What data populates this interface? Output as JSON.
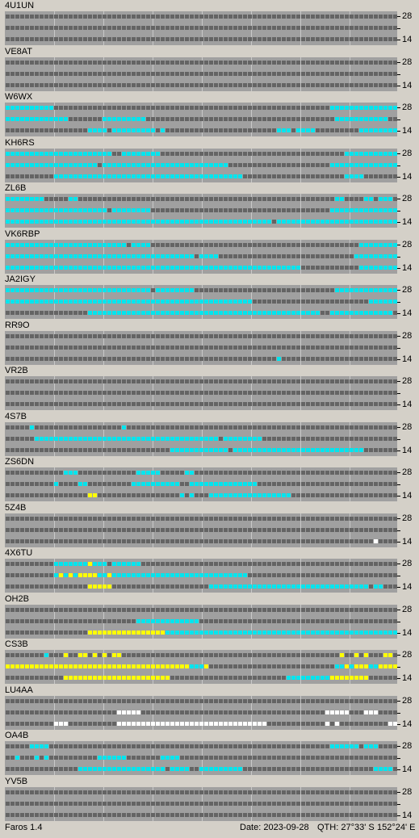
{
  "scale": {
    "top_label": "28",
    "bottom_label": "14"
  },
  "footer": {
    "app": "Faros 1.4",
    "date": "Date: 2023-09-28",
    "qth": "QTH: 27°33' S",
    "lon": "152°24' E"
  },
  "palette": {
    "off": "#646464",
    "heard": "#00e5ee",
    "strong": "#ffff00",
    "very_strong": "#ffffff",
    "background": "#a0a0a0"
  },
  "beacons": [
    {
      "name": "4U1UN",
      "pattern": [
        "000000000000000000000000000000000000000000000000000000000000000000000000000000000",
        "000000000000000000000000000000000000000000000000000000000000000000000000000000000",
        "000000000000000000000000000000000000000000000000000000000000000000000000000000000"
      ]
    },
    {
      "name": "VE8AT",
      "pattern": [
        "000000000000000000000000000000000000000000000000000000000000000000000000000000000",
        "000000000000000000000000000000000000000000000000000000000000000000000000000000000",
        "000000000000000000000000000000000000000000000000000000000000000000000000000000000"
      ]
    },
    {
      "name": "W6WX",
      "pattern": [
        "111111111100000000000000000000000000000000000000000000000000000000011111111111111",
        "111111111111100000001111111110000000000000000000000000000000000000001111111111100",
        "000000000000000001111011111111101000000000000000000000001110111100000000011111111"
      ]
    },
    {
      "name": "KH6RS",
      "pattern": [
        "111111111111111111111100111111110000000000000000000000000000000000000011111111111",
        "111111111111111111101111111111111111111111111100000000000000000000011111111111111",
        "000000000011111111111111111111111111111111111111100000000000000000000011110000000"
      ]
    },
    {
      "name": "ZL6B",
      "pattern": [
        "111111110000011000000000000000000000000000000000000000000000000000001100001101110",
        "111111111111111111111011111111000000000000000000000000000000000000011111111111111",
        "111111111111111111111111111111111111111111111111111111101111111111111111111111111"
      ]
    },
    {
      "name": "VK6RBP",
      "pattern": [
        "111111111111111111111111101111000000000000000000000000000000000000000000011111111",
        "111111111111111111111111111111111111111011110000000000000000000000000000111111111",
        "111111111111111111111111111111111111111111111111111111111111100000000000011111111"
      ]
    },
    {
      "name": "JA2IGY",
      "pattern": [
        "111111111111111111111111111111011111111000000000000000000000000000001111111111111",
        "111111111111111111111111111111111111111111111111111000000000000000000000000111111",
        "000000000000000001111111111111111111111111111111111111111111111110011111111111110"
      ]
    },
    {
      "name": "RR9O",
      "pattern": [
        "000000000000000000000000000000000000000000000000000000000000000000000000000000000",
        "000000000000000000000000000000000000000000000000000000000000000000000000000000000",
        "000000000000000000000000000000000000000000000000000000001000000000000000000000000"
      ]
    },
    {
      "name": "VR2B",
      "pattern": [
        "000000000000000000000000000000000000000000000000000000000000000000000000000000000",
        "000000000000000000000000000000000000000000000000000000000000000000000000000000000",
        "000000000000000000000000000000000000000000000000000000000000000000000000000000000"
      ]
    },
    {
      "name": "4S7B",
      "pattern": [
        "000001000000000000000000100000000000000000000000000000000000000000000000000000000",
        "000000111111111111111111111111111111111111110111111110000000000000000000000000000",
        "000000000000000000000000000000000011111111111101111111111111111111111111110000000"
      ]
    },
    {
      "name": "ZS6DN",
      "pattern": [
        "000000000000111000000000000111110000011000000000000000000000000000000000000000000",
        "000000000010000110000000001111111111001111111111111100000000000000000000000000000",
        "000000000000000002200000000000000000101000111111111111111110000000000000000000000"
      ]
    },
    {
      "name": "5Z4B",
      "pattern": [
        "000000000000000000000000000000000000000000000000000000000000000000000000000000000",
        "000000000000000000000000000000000000000000000000000000000000000000000000000000000",
        "000000000000000000000000000000000000000000000000000000000000000000000000000030000"
      ]
    },
    {
      "name": "4X6TU",
      "pattern": [
        "000000000011111112111011111100000000000000000000000000000000000000000000000000000",
        "000000000012121222211211111111111111111111111111110000000000000000000000000000000",
        "000000000000000002222200000000000000000000111111111111111111111111111111111011000"
      ]
    },
    {
      "name": "OH2B",
      "pattern": [
        "000000000000000000000000000000000000000000000000000000000000000000000000000000000",
        "000000000000000000000000000111111111111100000000000000000000000000000000000000000",
        "000000000000000002222222222222222111111111111111111111111111111111111111111111111"
      ]
    },
    {
      "name": "CS3B",
      "pattern": [
        "000000001000200220202022000000000000000000000000000000000000000000000200202000220",
        "222222222222222222222222222222222222221112000000000000000000000000001121222112222",
        "000000000000222222222222222222222200000000000000000000000011111111122222222000000"
      ]
    },
    {
      "name": "LU4AA",
      "pattern": [
        "000000000000000000000000000000000000000000000000000000000000000000000000000000000",
        "000000000000000000000003333300000000000000000000000000000000000000333330003330000",
        "000000000033300000000003333333333333333333333333333333000000000000303000000000033"
      ]
    },
    {
      "name": "OA4B",
      "pattern": [
        "000001111000000000000000000000000000000000000000000000000000000000011111101110000",
        "001000101000000000011111100000001111000000000000000000000000000000000000000000000",
        "000000000000000111111111111111111011110011111111100000000000000000000000000011110"
      ]
    },
    {
      "name": "YV5B",
      "pattern": [
        "000000000000000000000000000000000000000000000000000000000000000000000000000000000",
        "000000000000000000000000000000000000000000000000000000000000000000000000000000000",
        "000000000000000000000000000000000000000000000000000000000000000000000000000000000"
      ]
    }
  ]
}
